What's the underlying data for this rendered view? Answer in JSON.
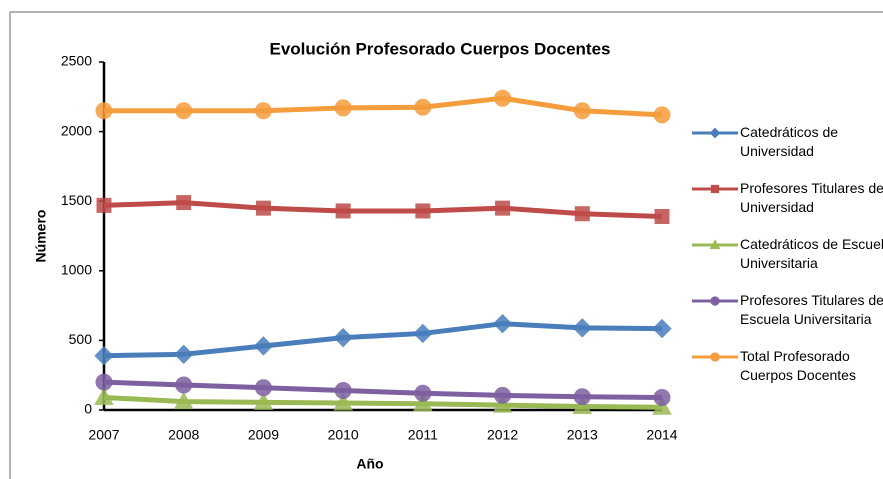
{
  "chart_data": {
    "type": "line",
    "title": "Evolución Profesorado Cuerpos Docentes",
    "x_label": "Año",
    "y_label": "Número",
    "categories": [
      "2007",
      "2008",
      "2009",
      "2010",
      "2011",
      "2012",
      "2013",
      "2014"
    ],
    "ylim": [
      0,
      2500
    ],
    "yticks": [
      0,
      500,
      1000,
      1500,
      2000,
      2500
    ],
    "series": [
      {
        "name": "Catedráticos de Universidad",
        "color": "#4a7ebb",
        "marker": "diamond",
        "values": [
          390,
          400,
          460,
          520,
          550,
          620,
          590,
          585
        ]
      },
      {
        "name": "Profesores Titulares de Universidad",
        "color": "#be4b48",
        "marker": "square",
        "values": [
          1470,
          1490,
          1450,
          1430,
          1430,
          1450,
          1410,
          1390
        ]
      },
      {
        "name": "Catedráticos de Escuela Universitaria",
        "color": "#98b954",
        "marker": "triangle",
        "values": [
          90,
          60,
          55,
          50,
          45,
          35,
          25,
          20
        ]
      },
      {
        "name": "Profesores Titulares de Escuela Universitaria",
        "color": "#7d60a0",
        "marker": "circle",
        "values": [
          200,
          180,
          160,
          140,
          120,
          105,
          95,
          90
        ]
      },
      {
        "name": "Total Profesorado Cuerpos Docentes",
        "color": "#f59d3d",
        "marker": "circle",
        "values": [
          2150,
          2150,
          2150,
          2170,
          2175,
          2240,
          2150,
          2120
        ]
      }
    ]
  }
}
